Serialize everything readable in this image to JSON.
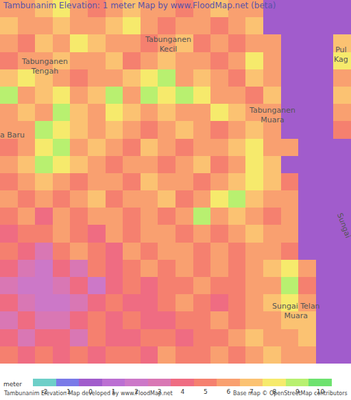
{
  "chart_data": {
    "type": "heatmap",
    "title": "Tambunanim Elevation: 1 meter Map by www.FloodMap.net (beta)",
    "tick_labels": false,
    "cells": [
      [
        6,
        6,
        7,
        8,
        6,
        5,
        6,
        7,
        6,
        6,
        5,
        6,
        7,
        6,
        6,
        0,
        0,
        0,
        0,
        0
      ],
      [
        7,
        6,
        6,
        7,
        6,
        6,
        7,
        8,
        6,
        5,
        6,
        6,
        5,
        6,
        7,
        0,
        0,
        0,
        0,
        0
      ],
      [
        6,
        5,
        7,
        6,
        8,
        7,
        6,
        6,
        5,
        6,
        7,
        5,
        6,
        5,
        6,
        6,
        0,
        0,
        0,
        7
      ],
      [
        5,
        6,
        6,
        7,
        6,
        6,
        7,
        5,
        6,
        7,
        6,
        6,
        5,
        6,
        8,
        6,
        0,
        0,
        0,
        8
      ],
      [
        7,
        8,
        7,
        6,
        5,
        6,
        6,
        7,
        8,
        9,
        6,
        7,
        6,
        5,
        7,
        6,
        0,
        0,
        0,
        6
      ],
      [
        9,
        6,
        7,
        8,
        6,
        7,
        9,
        6,
        9,
        8,
        9,
        8,
        6,
        6,
        5,
        7,
        0,
        0,
        0,
        7
      ],
      [
        6,
        7,
        6,
        9,
        7,
        6,
        8,
        7,
        6,
        7,
        6,
        6,
        8,
        7,
        6,
        6,
        0,
        0,
        0,
        6
      ],
      [
        6,
        6,
        9,
        8,
        7,
        6,
        7,
        6,
        5,
        6,
        7,
        6,
        5,
        6,
        7,
        6,
        0,
        0,
        0,
        5
      ],
      [
        5,
        6,
        8,
        9,
        6,
        7,
        6,
        5,
        7,
        6,
        5,
        6,
        6,
        7,
        8,
        6,
        6,
        0,
        0,
        0
      ],
      [
        6,
        7,
        9,
        8,
        7,
        6,
        5,
        6,
        6,
        5,
        6,
        7,
        5,
        6,
        8,
        7,
        0,
        0,
        0,
        0
      ],
      [
        5,
        6,
        7,
        6,
        5,
        6,
        6,
        5,
        7,
        6,
        6,
        5,
        6,
        7,
        8,
        7,
        5,
        0,
        0,
        0
      ],
      [
        6,
        5,
        6,
        5,
        6,
        7,
        5,
        6,
        6,
        7,
        5,
        6,
        8,
        9,
        7,
        6,
        6,
        0,
        0,
        0
      ],
      [
        5,
        6,
        4,
        6,
        5,
        6,
        6,
        5,
        6,
        5,
        6,
        9,
        6,
        7,
        6,
        5,
        6,
        0,
        0,
        0
      ],
      [
        4,
        5,
        5,
        6,
        5,
        4,
        6,
        5,
        6,
        6,
        5,
        6,
        5,
        6,
        7,
        6,
        6,
        0,
        0,
        0
      ],
      [
        5,
        4,
        3,
        5,
        6,
        5,
        4,
        6,
        5,
        6,
        6,
        5,
        6,
        5,
        6,
        6,
        5,
        0,
        0,
        0
      ],
      [
        4,
        3,
        2,
        4,
        3,
        5,
        4,
        5,
        6,
        5,
        6,
        5,
        6,
        5,
        6,
        7,
        8,
        6,
        0,
        0
      ],
      [
        3,
        2,
        2,
        3,
        4,
        2,
        4,
        5,
        4,
        5,
        5,
        6,
        5,
        5,
        6,
        6,
        9,
        5,
        0,
        0
      ],
      [
        4,
        3,
        2,
        2,
        3,
        4,
        5,
        4,
        4,
        5,
        6,
        5,
        4,
        5,
        6,
        7,
        8,
        6,
        0,
        0
      ],
      [
        3,
        4,
        3,
        3,
        4,
        5,
        4,
        5,
        4,
        4,
        5,
        5,
        6,
        5,
        6,
        6,
        7,
        7,
        0,
        0
      ],
      [
        4,
        3,
        4,
        4,
        3,
        5,
        4,
        4,
        5,
        5,
        4,
        5,
        5,
        6,
        7,
        6,
        6,
        7,
        0,
        0
      ],
      [
        5,
        4,
        5,
        4,
        5,
        4,
        5,
        5,
        4,
        6,
        5,
        5,
        6,
        5,
        6,
        7,
        6,
        6,
        0,
        0
      ]
    ],
    "colorbar": {
      "title": "meter",
      "range": [
        -2.5,
        10.5
      ],
      "ticks": [
        -2,
        -1,
        0,
        1,
        2,
        3,
        4,
        5,
        6,
        7,
        8,
        9,
        10
      ],
      "colors": [
        "#6ecfc8",
        "#7a7ae8",
        "#a15ccc",
        "#bb6fd2",
        "#cc78c8",
        "#d977b4",
        "#ef6c82",
        "#f5806f",
        "#f9a070",
        "#fbc272",
        "#f6ea6c",
        "#b8f070",
        "#6ee26f"
      ]
    },
    "annotations": [
      {
        "lines": [
          "Tabunganen",
          "Kecil"
        ]
      },
      {
        "lines": [
          "Tabunganen",
          "Tengah"
        ]
      },
      {
        "lines": [
          "Tabunganen",
          "Muara"
        ]
      },
      {
        "lines": [
          "a Baru"
        ]
      },
      {
        "lines": [
          "Sungai Telan",
          "Muara"
        ]
      },
      {
        "lines": [
          "Pul",
          "Kag"
        ]
      },
      {
        "lines": [
          "Sungai"
        ]
      }
    ],
    "credits": [
      "Tambunanim Elevation Map developed by www.FloodMap.net",
      "Base map © OpenStreetMap contributors"
    ]
  }
}
